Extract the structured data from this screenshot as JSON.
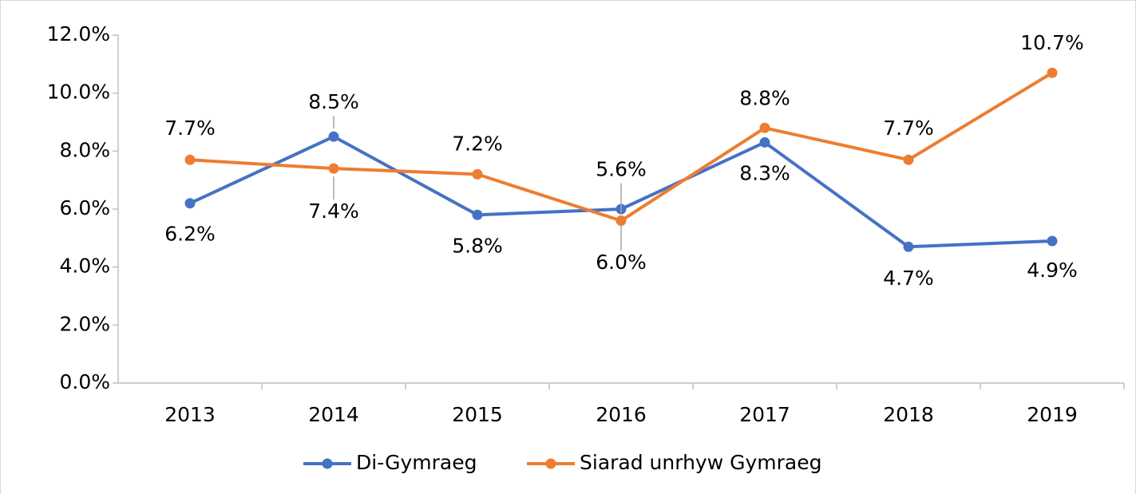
{
  "chart_data": {
    "type": "line",
    "categories": [
      "2013",
      "2014",
      "2015",
      "2016",
      "2017",
      "2018",
      "2019"
    ],
    "series": [
      {
        "name": "Di-Gymraeg",
        "color": "#4472c4",
        "values": [
          6.2,
          8.5,
          5.8,
          6.0,
          8.3,
          4.7,
          4.9
        ],
        "value_labels": [
          "6.2%",
          "8.5%",
          "5.8%",
          "6.0%",
          "8.3%",
          "4.7%",
          "4.9%"
        ]
      },
      {
        "name": "Siarad unrhyw Gymraeg",
        "color": "#ed7d31",
        "values": [
          7.7,
          7.4,
          7.2,
          5.6,
          8.8,
          7.7,
          10.7
        ],
        "value_labels": [
          "7.7%",
          "7.4%",
          "7.2%",
          "5.6%",
          "8.8%",
          "7.7%",
          "10.7%"
        ]
      }
    ],
    "ylim": [
      0,
      12
    ],
    "yticks": [
      {
        "value": 0,
        "label": "0.0%"
      },
      {
        "value": 2,
        "label": "2.0%"
      },
      {
        "value": 4,
        "label": "4.0%"
      },
      {
        "value": 6,
        "label": "6.0%"
      },
      {
        "value": 8,
        "label": "8.0%"
      },
      {
        "value": 10,
        "label": "10.0%"
      },
      {
        "value": 12,
        "label": "12.0%"
      }
    ],
    "legend": "bottom"
  }
}
